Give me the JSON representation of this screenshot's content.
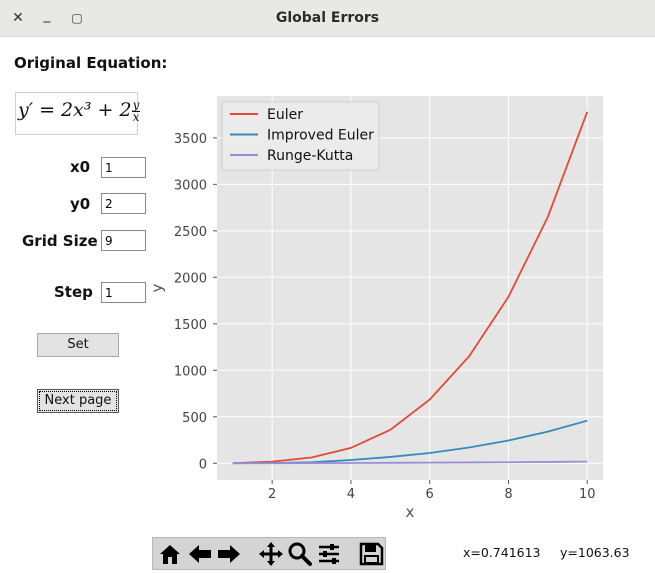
{
  "window": {
    "title": "Global Errors",
    "close_glyph": "✕",
    "minimize_glyph": "_",
    "maximize_glyph": "▢"
  },
  "left_panel": {
    "heading": "Original Equation:",
    "equation": {
      "lhs": "y′ = 2x³ + 2",
      "num": "y",
      "den": "x"
    },
    "x0": {
      "label": "x0",
      "value": "1"
    },
    "y0": {
      "label": "y0",
      "value": "2"
    },
    "grid_size": {
      "label": "Grid Size",
      "value": "9"
    },
    "step": {
      "label": "Step",
      "value": "1"
    },
    "set_button": "Set",
    "next_page_button": "Next page"
  },
  "chart_data": {
    "type": "line",
    "xlabel": "x",
    "ylabel": "y",
    "xlim": [
      0.6,
      10.4
    ],
    "ylim": [
      -180,
      3950
    ],
    "xticks": [
      2,
      4,
      6,
      8,
      10
    ],
    "yticks": [
      0,
      500,
      1000,
      1500,
      2000,
      2500,
      3000,
      3500
    ],
    "grid": true,
    "legend_position": "top-left",
    "background": "#e5e5e5",
    "x": [
      1,
      2,
      3,
      4,
      5,
      6,
      7,
      8,
      9,
      10
    ],
    "series": [
      {
        "name": "Euler",
        "color": "#e24a33",
        "values": [
          0,
          18,
          62,
          165,
          360,
          685,
          1150,
          1790,
          2650,
          3780
        ]
      },
      {
        "name": "Improved Euler",
        "color": "#348abd",
        "values": [
          0,
          3,
          10,
          35,
          68,
          110,
          170,
          245,
          340,
          458
        ]
      },
      {
        "name": "Runge-Kutta",
        "color": "#988ed5",
        "values": [
          0,
          1,
          2,
          3,
          5,
          7,
          9,
          11,
          14,
          18
        ]
      }
    ]
  },
  "toolbar": {
    "icons": [
      "home-icon",
      "back-arrow-icon",
      "forward-arrow-icon",
      "pan-icon",
      "zoom-icon",
      "subplots-icon",
      "save-icon"
    ],
    "x_readout": "x=0.741613",
    "y_readout": "y=1063.63"
  }
}
